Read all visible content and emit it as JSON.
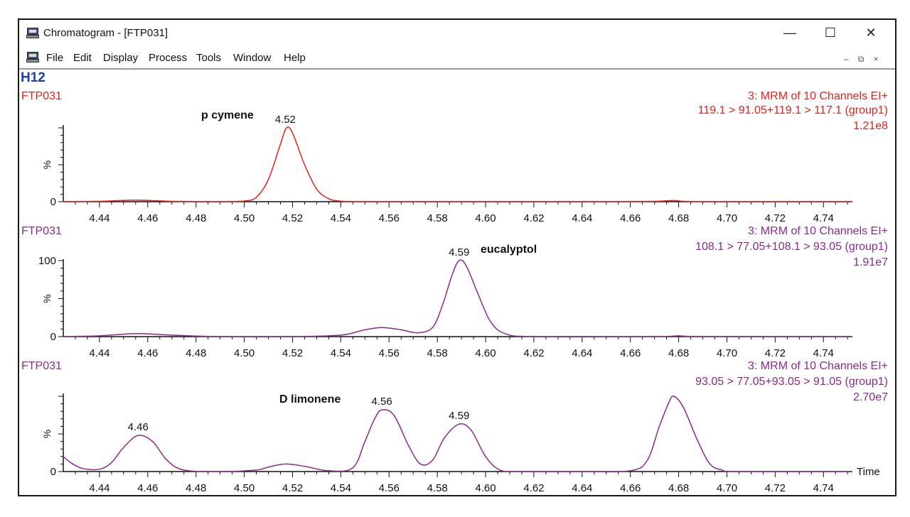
{
  "window": {
    "title": "Chromatogram - [FTP031]",
    "minimize_glyph": "—",
    "maximize_glyph": "☐",
    "close_glyph": "✕"
  },
  "menu": {
    "items": [
      "File",
      "Edit",
      "Display",
      "Process",
      "Tools",
      "Window",
      "Help"
    ],
    "mdi_minimize": "–",
    "mdi_restore": "⧉",
    "mdi_close": "×"
  },
  "sample_label": "H12",
  "colors": {
    "red": "#e8221a",
    "purple": "#8c2a8c",
    "axis": "#111111",
    "h12": "#1f3fae"
  },
  "chart_data": [
    {
      "type": "line",
      "file": "FTP031",
      "header": [
        "3: MRM of 10 Channels EI+",
        "119.1 > 91.05+119.1 > 117.1 (group1)",
        "1.21e8"
      ],
      "color": "#e8221a",
      "compound": "p cymene",
      "y_ticks": [
        "0",
        ""
      ],
      "ylabel": "%",
      "ylim": [
        0,
        100
      ],
      "xlim": [
        4.425,
        4.752
      ],
      "x_ticks": [
        "4.44",
        "4.46",
        "4.48",
        "4.50",
        "4.52",
        "4.54",
        "4.56",
        "4.58",
        "4.60",
        "4.62",
        "4.64",
        "4.66",
        "4.68",
        "4.70",
        "4.72",
        "4.74"
      ],
      "peak_labels": [
        {
          "x": 4.517,
          "y": 100,
          "label": "4.52"
        }
      ],
      "x": [
        4.425,
        4.44,
        4.455,
        4.47,
        4.49,
        4.5,
        4.505,
        4.51,
        4.515,
        4.5175,
        4.52,
        4.525,
        4.53,
        4.535,
        4.54,
        4.55,
        4.6,
        4.65,
        4.67,
        4.678,
        4.69,
        4.752
      ],
      "y": [
        0,
        0.5,
        2,
        0.5,
        0,
        1,
        6,
        30,
        78,
        100,
        93,
        50,
        17,
        4,
        0.8,
        0,
        0,
        0,
        0.5,
        1.5,
        0,
        0
      ]
    },
    {
      "type": "line",
      "file": "FTP031",
      "header": [
        "3: MRM of 10 Channels EI+",
        "108.1 > 77.05+108.1 > 93.05 (group1)",
        "1.91e7"
      ],
      "color": "#8c2a8c",
      "compound": "eucalyptol",
      "y_ticks": [
        "0",
        "100"
      ],
      "ylabel": "%",
      "ylim": [
        0,
        100
      ],
      "xlim": [
        4.425,
        4.752
      ],
      "x_ticks": [
        "4.44",
        "4.46",
        "4.48",
        "4.50",
        "4.52",
        "4.54",
        "4.56",
        "4.58",
        "4.60",
        "4.62",
        "4.64",
        "4.66",
        "4.68",
        "4.70",
        "4.72",
        "4.74"
      ],
      "peak_labels": [
        {
          "x": 4.589,
          "y": 100,
          "label": "4.59"
        }
      ],
      "x": [
        4.425,
        4.44,
        4.455,
        4.47,
        4.49,
        4.52,
        4.54,
        4.55,
        4.557,
        4.565,
        4.572,
        4.578,
        4.582,
        4.586,
        4.589,
        4.592,
        4.597,
        4.602,
        4.608,
        4.62,
        4.67,
        4.68,
        4.69,
        4.752
      ],
      "y": [
        0,
        1,
        4,
        2,
        0,
        0,
        2,
        9,
        12,
        9,
        5,
        12,
        40,
        80,
        100,
        93,
        55,
        20,
        4,
        0,
        0,
        1,
        0,
        0
      ]
    },
    {
      "type": "line",
      "file": "FTP031",
      "header": [
        "3: MRM of 10 Channels EI+",
        "93.05 > 77.05+93.05 > 91.05 (group1)",
        "2.70e7"
      ],
      "color": "#8c2a8c",
      "compound": "D limonene",
      "y_ticks": [
        "0",
        ""
      ],
      "ylabel": "%",
      "ylim": [
        0,
        100
      ],
      "xlim": [
        4.425,
        4.752
      ],
      "x_ticks": [
        "4.44",
        "4.46",
        "4.48",
        "4.50",
        "4.52",
        "4.54",
        "4.56",
        "4.58",
        "4.60",
        "4.62",
        "4.64",
        "4.66",
        "4.68",
        "4.70",
        "4.72",
        "4.74"
      ],
      "x_end_label": "Time",
      "peak_labels": [
        {
          "x": 4.456,
          "y": 48,
          "label": "4.46"
        },
        {
          "x": 4.557,
          "y": 82,
          "label": "4.56"
        },
        {
          "x": 4.589,
          "y": 63,
          "label": "4.59"
        }
      ],
      "x": [
        4.425,
        4.428,
        4.433,
        4.44,
        4.445,
        4.45,
        4.456,
        4.462,
        4.468,
        4.475,
        4.49,
        4.505,
        4.51,
        4.517,
        4.525,
        4.535,
        4.545,
        4.55,
        4.554,
        4.557,
        4.562,
        4.568,
        4.573,
        4.578,
        4.583,
        4.589,
        4.594,
        4.6,
        4.606,
        4.615,
        4.64,
        4.66,
        4.667,
        4.672,
        4.676,
        4.678,
        4.682,
        4.688,
        4.693,
        4.698,
        4.705,
        4.752
      ],
      "y": [
        20,
        12,
        4,
        3,
        12,
        32,
        48,
        40,
        15,
        2,
        0,
        2,
        6,
        10,
        7,
        1,
        5,
        40,
        70,
        82,
        75,
        35,
        10,
        15,
        45,
        63,
        55,
        20,
        2,
        0,
        0,
        1,
        15,
        60,
        92,
        100,
        85,
        40,
        10,
        2,
        0,
        0
      ]
    }
  ]
}
